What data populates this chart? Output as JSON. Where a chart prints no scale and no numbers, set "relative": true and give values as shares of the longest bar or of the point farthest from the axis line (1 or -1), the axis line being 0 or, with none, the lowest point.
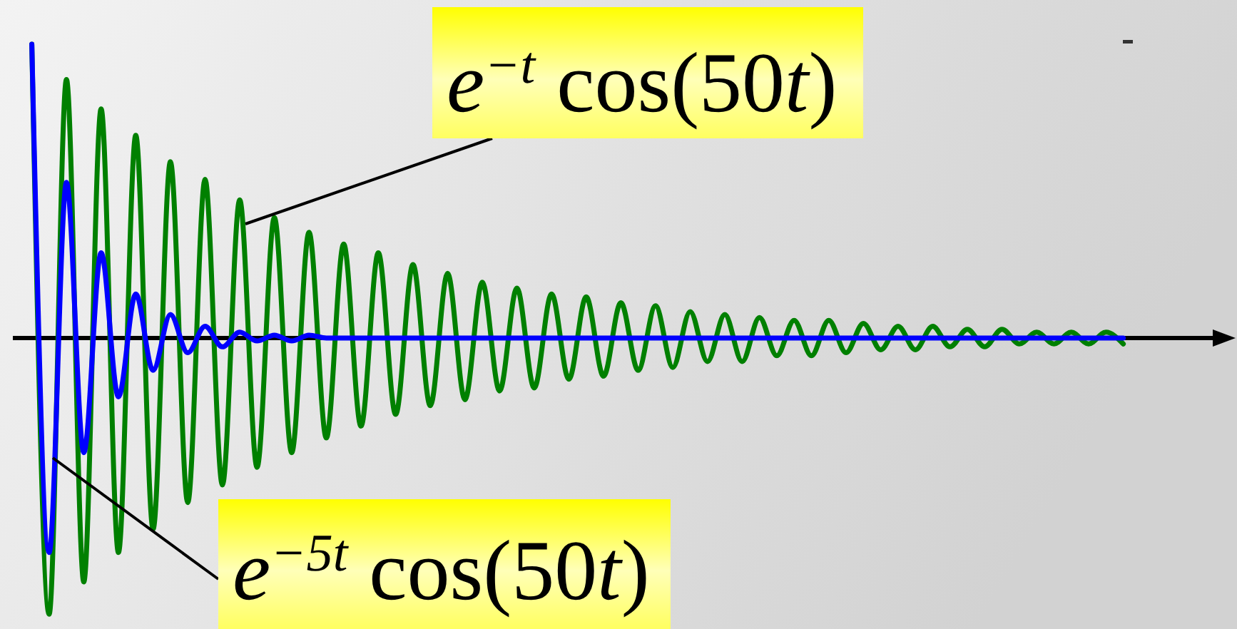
{
  "chart_data": {
    "type": "line",
    "relative": true,
    "categories": [
      null,
      null,
      null,
      null,
      null,
      null,
      null,
      null,
      null,
      null,
      null,
      null,
      null,
      null,
      null,
      null,
      null,
      null,
      null,
      null,
      null,
      null,
      null,
      null,
      null,
      null,
      null,
      null,
      null,
      null,
      null,
      null,
      null,
      null,
      null,
      null,
      null,
      null,
      null,
      null,
      null,
      null,
      null,
      null,
      null,
      null,
      null,
      null,
      null,
      null,
      null,
      null,
      null,
      null,
      null,
      null,
      null,
      null,
      null,
      null,
      null,
      null,
      null,
      null
    ],
    "series": [
      {
        "name": "e$^{−t}$ cos(50t)",
        "color": "#008000",
        "values": [
          1.0,
          -0.94,
          0.88,
          -0.83,
          0.78,
          -0.73,
          0.69,
          -0.65,
          0.6,
          -0.56,
          0.54,
          -0.5,
          0.47,
          -0.44,
          0.41,
          -0.39,
          0.36,
          -0.34,
          0.32,
          -0.3,
          0.29,
          -0.26,
          0.25,
          -0.23,
          0.22,
          -0.21,
          0.19,
          -0.18,
          0.17,
          -0.17,
          0.15,
          -0.14,
          0.14,
          -0.13,
          0.12,
          -0.11,
          0.11,
          -0.1,
          0.09,
          -0.08,
          0.08,
          -0.08,
          0.07,
          -0.06,
          0.06,
          -0.06,
          0.06,
          -0.05,
          0.05,
          -0.04,
          0.04,
          -0.04,
          0.04,
          -0.03,
          0.03,
          -0.03,
          0.03,
          -0.02,
          0.02,
          -0.02,
          0.02,
          -0.02,
          0.02,
          -0.02
        ]
      },
      {
        "name": "e$^{−5t}$ cos(50t)",
        "color": "#0000ff",
        "values": [
          1.0,
          -0.73,
          0.53,
          -0.39,
          0.29,
          -0.2,
          0.15,
          -0.11,
          0.08,
          -0.05,
          0.04,
          -0.03,
          0.02,
          -0.01,
          0.01,
          -0.01,
          0.01,
          0,
          0,
          0,
          0,
          0,
          0,
          0,
          0,
          0,
          0,
          0,
          0,
          0,
          0,
          0,
          0,
          0,
          0,
          0,
          0,
          0,
          0,
          0,
          0,
          0,
          0,
          0,
          0,
          0,
          0,
          0,
          0,
          0,
          0,
          0,
          0,
          0,
          0,
          0,
          0,
          0,
          0,
          0,
          0,
          0,
          0,
          0
        ]
      }
    ]
  }
}
